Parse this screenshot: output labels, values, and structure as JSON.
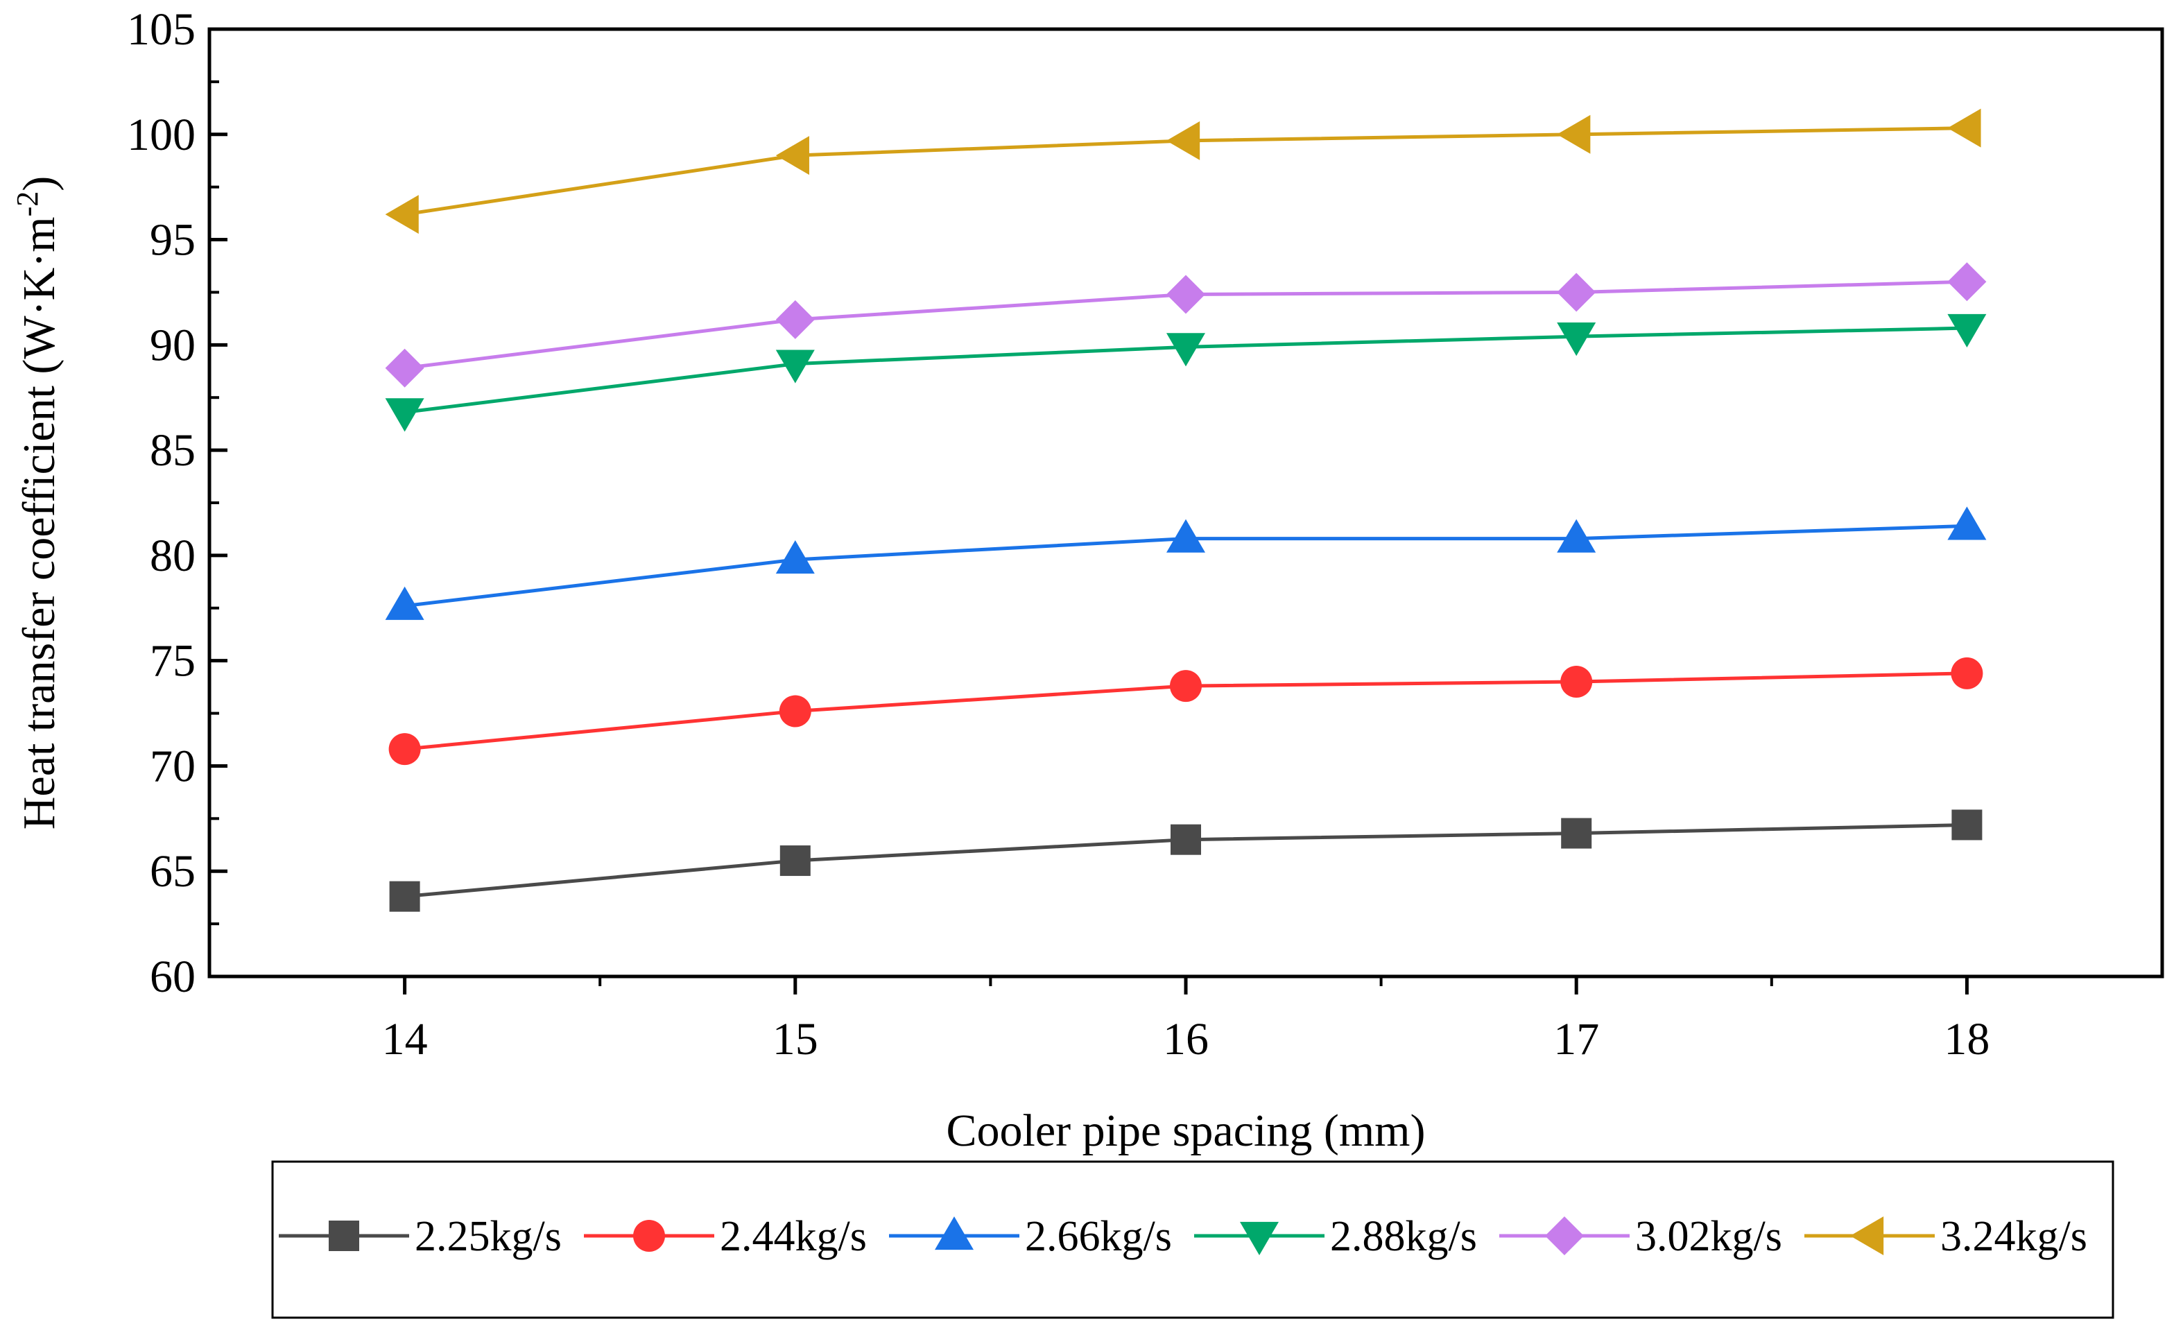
{
  "chart_data": {
    "type": "line",
    "title": "",
    "xlabel": "Cooler pipe spacing (mm)",
    "ylabel": "Heat transfer coefficient (W·K·m",
    "ylabel_sup": "-2",
    "ylabel_close": ")",
    "x": [
      14,
      15,
      16,
      17,
      18
    ],
    "x_ticks": [
      "14",
      "15",
      "16",
      "17",
      "18"
    ],
    "xlim": [
      13.5,
      18.5
    ],
    "ylim": [
      60,
      105
    ],
    "y_ticks": [
      "60",
      "65",
      "70",
      "75",
      "80",
      "85",
      "90",
      "95",
      "100",
      "105"
    ],
    "grid": false,
    "legend_position": "bottom",
    "series": [
      {
        "name": "2.25kg/s",
        "color": "#4a4a4a",
        "marker": "square",
        "values": [
          63.8,
          65.5,
          66.5,
          66.8,
          67.2
        ]
      },
      {
        "name": "2.44kg/s",
        "color": "#ff3333",
        "marker": "circle",
        "values": [
          70.8,
          72.6,
          73.8,
          74.0,
          74.4
        ]
      },
      {
        "name": "2.66kg/s",
        "color": "#1a73e8",
        "marker": "triangle-up",
        "values": [
          77.6,
          79.8,
          80.8,
          80.8,
          81.4
        ]
      },
      {
        "name": "2.88kg/s",
        "color": "#00a86b",
        "marker": "triangle-down",
        "values": [
          86.8,
          89.1,
          89.9,
          90.4,
          90.8
        ]
      },
      {
        "name": "3.02kg/s",
        "color": "#c77dec",
        "marker": "diamond",
        "values": [
          88.9,
          91.2,
          92.4,
          92.5,
          93.0
        ]
      },
      {
        "name": "3.24kg/s",
        "color": "#d4a017",
        "marker": "triangle-left",
        "values": [
          96.2,
          99.0,
          99.7,
          100.0,
          100.3
        ]
      }
    ]
  }
}
